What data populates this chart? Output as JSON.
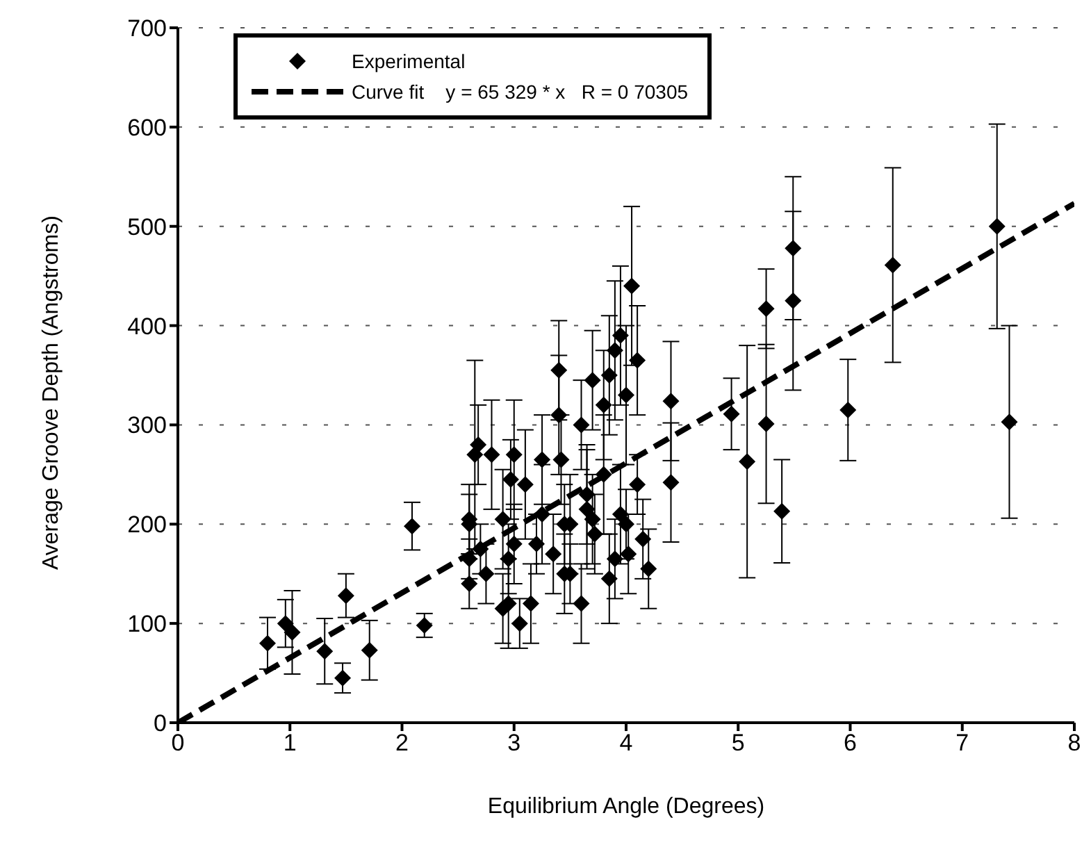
{
  "chart_data": {
    "type": "scatter",
    "xlabel": "Equilibrium Angle (Degrees)",
    "ylabel": "Average Groove Depth (Angstroms)",
    "xlim": [
      0,
      8
    ],
    "xticks": [
      0,
      1,
      2,
      3,
      4,
      5,
      6,
      7,
      8
    ],
    "ylim": [
      0,
      700
    ],
    "yticks": [
      0,
      100,
      200,
      300,
      400,
      500,
      600,
      700
    ],
    "grid": "y",
    "legend": "top left",
    "marker": "diamond",
    "series": [
      {
        "name": "Experimental",
        "color": "#000000",
        "x": [
          0.8,
          0.96,
          1.02,
          1.31,
          1.47,
          1.5,
          1.71,
          2.09,
          2.2,
          2.6,
          2.6,
          2.6,
          2.6,
          2.65,
          2.68,
          2.7,
          2.75,
          2.8,
          2.9,
          2.9,
          2.95,
          2.95,
          2.97,
          3.0,
          3.0,
          3.05,
          3.1,
          3.15,
          3.2,
          3.25,
          3.25,
          3.35,
          3.4,
          3.4,
          3.42,
          3.45,
          3.45,
          3.5,
          3.5,
          3.6,
          3.6,
          3.65,
          3.65,
          3.7,
          3.7,
          3.72,
          3.8,
          3.8,
          3.85,
          3.85,
          3.9,
          3.9,
          3.95,
          3.95,
          4.0,
          4.0,
          4.02,
          4.05,
          4.1,
          4.1,
          4.15,
          4.2,
          4.4,
          4.4,
          4.94,
          5.08,
          5.25,
          5.25,
          5.39,
          5.49,
          5.49,
          5.98,
          6.38,
          7.31,
          7.42
        ],
        "values": [
          80,
          100,
          91,
          72,
          45,
          128,
          73,
          198,
          98,
          205,
          200,
          165,
          140,
          270,
          280,
          175,
          150,
          270,
          205,
          115,
          165,
          120,
          245,
          270,
          180,
          100,
          240,
          120,
          180,
          265,
          210,
          170,
          355,
          310,
          265,
          150,
          200,
          150,
          200,
          300,
          120,
          230,
          215,
          345,
          205,
          190,
          250,
          320,
          350,
          145,
          375,
          165,
          390,
          210,
          330,
          200,
          170,
          440,
          365,
          240,
          185,
          155,
          324,
          242,
          311,
          263,
          417,
          301,
          213,
          478,
          425,
          315,
          461,
          500,
          303
        ],
        "errors": [
          26,
          24,
          42,
          33,
          15,
          22,
          30,
          24,
          12,
          35,
          30,
          20,
          25,
          95,
          40,
          25,
          30,
          55,
          50,
          35,
          35,
          45,
          40,
          55,
          40,
          25,
          55,
          40,
          30,
          45,
          50,
          40,
          50,
          60,
          45,
          40,
          40,
          30,
          50,
          45,
          40,
          50,
          60,
          50,
          45,
          40,
          60,
          55,
          60,
          45,
          70,
          40,
          70,
          50,
          70,
          35,
          40,
          80,
          55,
          30,
          40,
          40,
          60,
          60,
          36,
          117,
          40,
          80,
          52,
          72,
          90,
          51,
          98,
          103,
          97
        ]
      },
      {
        "name": "Curve fit    y = 65 329 * x   R = 0 70305",
        "type": "line",
        "color": "#000000",
        "line_style": "dashed",
        "marker": "none",
        "x": [
          0,
          8
        ],
        "values": [
          0,
          523
        ]
      }
    ]
  }
}
